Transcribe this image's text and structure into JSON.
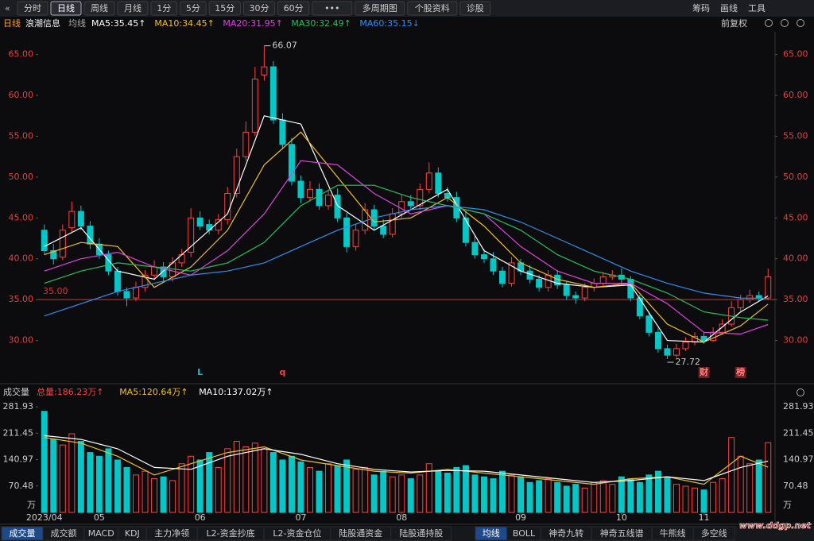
{
  "toolbar": {
    "left": [
      "分时",
      "日线",
      "周线",
      "月线",
      "1分",
      "5分",
      "15分",
      "30分",
      "60分",
      "•••",
      "多周期图",
      "个股资料",
      "诊股"
    ],
    "active_index": 1,
    "right": [
      "筹码",
      "画线",
      "工具"
    ]
  },
  "info_bar": {
    "period": "日线",
    "name": "浪潮信息",
    "indicator": "均线",
    "ma_labels": [
      {
        "text": "MA5:35.45↑",
        "color": "#ffffff"
      },
      {
        "text": "MA10:34.45↑",
        "color": "#f0c020"
      },
      {
        "text": "MA20:31.95↑",
        "color": "#e040e0"
      },
      {
        "text": "MA30:32.49↑",
        "color": "#20c060"
      },
      {
        "text": "MA60:35.15↓",
        "color": "#2a90f0"
      }
    ],
    "right": "前复权"
  },
  "chart_data": [
    {
      "type": "candlestick",
      "up_color": "#ff4040",
      "down_color": "#00c8c8",
      "ylim": [
        25.0,
        67.3
      ],
      "yticks": [
        {
          "value": 30,
          "label": "30.00"
        },
        {
          "value": 35,
          "label": "35.00"
        },
        {
          "value": 40,
          "label": "40.00"
        },
        {
          "value": 45,
          "label": "45.00"
        },
        {
          "value": 50,
          "label": "50.00"
        },
        {
          "value": 55,
          "label": "55.00"
        },
        {
          "value": 60,
          "label": "60.00"
        },
        {
          "value": 65,
          "label": "65.00"
        }
      ],
      "open": [
        43.5,
        41.0,
        40.2,
        43.8,
        45.8,
        44.0,
        41.8,
        40.5,
        38.5,
        36.0,
        35.2,
        36.5,
        38.0,
        39.0,
        37.8,
        39.5,
        40.8,
        45.0,
        44.2,
        43.5,
        44.8,
        48.0,
        52.5,
        55.5,
        62.5,
        63.5,
        57.0,
        54.0,
        49.5,
        47.5,
        48.5,
        46.5,
        47.8,
        45.0,
        41.5,
        43.5,
        46.0,
        44.0,
        43.0,
        45.5,
        47.0,
        46.5,
        48.5,
        50.5,
        48.0,
        47.5,
        45.0,
        42.0,
        40.5,
        40.0,
        38.5,
        37.0,
        39.5,
        38.5,
        37.5,
        36.5,
        38.0,
        36.8,
        35.5,
        35.2,
        36.5,
        37.0,
        37.8,
        38.0,
        37.5,
        35.2,
        33.0,
        31.0,
        29.0,
        28.2,
        29.0,
        29.8,
        30.5,
        30.0,
        31.0,
        32.0,
        34.0,
        35.0,
        35.5,
        35.2
      ],
      "high": [
        44.2,
        41.8,
        44.2,
        47.0,
        46.5,
        44.6,
        42.5,
        41.0,
        39.0,
        36.5,
        37.2,
        38.6,
        39.8,
        39.6,
        40.2,
        41.2,
        46.2,
        45.8,
        44.8,
        45.5,
        48.8,
        53.5,
        56.8,
        63.5,
        66.07,
        64.2,
        57.8,
        54.8,
        50.2,
        49.5,
        49.2,
        48.5,
        48.6,
        45.6,
        44.2,
        46.8,
        46.6,
        44.8,
        46.2,
        47.8,
        47.8,
        49.2,
        51.8,
        51.2,
        48.8,
        48.2,
        45.8,
        42.8,
        41.2,
        40.8,
        39.0,
        40.2,
        40.0,
        39.2,
        38.0,
        38.6,
        38.6,
        37.2,
        36.0,
        37.0,
        37.6,
        38.4,
        38.6,
        38.8,
        37.9,
        35.6,
        33.5,
        31.5,
        29.5,
        29.6,
        30.4,
        31.0,
        31.0,
        31.6,
        32.6,
        34.8,
        35.6,
        36.2,
        36.0,
        38.8
      ],
      "low": [
        40.5,
        39.3,
        39.8,
        43.2,
        43.5,
        41.2,
        40.0,
        38.0,
        35.5,
        34.2,
        34.8,
        36.0,
        37.4,
        37.2,
        37.2,
        39.0,
        40.2,
        43.5,
        43.0,
        43.0,
        44.2,
        47.5,
        52.0,
        55.0,
        61.8,
        56.5,
        53.5,
        49.0,
        46.8,
        47.0,
        46.0,
        46.0,
        44.5,
        40.8,
        41.0,
        43.0,
        43.5,
        42.5,
        42.6,
        45.0,
        46.0,
        46.0,
        48.0,
        47.5,
        47.0,
        44.5,
        41.5,
        40.0,
        39.5,
        38.0,
        36.5,
        36.6,
        38.0,
        37.0,
        36.0,
        36.0,
        36.3,
        35.0,
        34.5,
        34.8,
        36.0,
        36.6,
        37.4,
        37.0,
        34.8,
        32.6,
        30.5,
        28.5,
        27.72,
        27.9,
        28.7,
        29.4,
        29.6,
        29.8,
        30.7,
        31.7,
        33.6,
        34.6,
        34.8,
        35.0
      ],
      "close": [
        41.0,
        40.0,
        43.5,
        45.8,
        44.0,
        41.8,
        40.5,
        38.5,
        36.0,
        35.2,
        36.5,
        38.0,
        39.0,
        37.8,
        39.5,
        40.5,
        45.0,
        44.0,
        43.5,
        44.8,
        48.0,
        52.5,
        55.5,
        62.0,
        63.5,
        57.0,
        54.0,
        49.5,
        47.5,
        48.5,
        46.5,
        47.8,
        45.0,
        41.5,
        43.5,
        46.0,
        44.0,
        43.0,
        45.5,
        47.0,
        46.5,
        48.5,
        50.5,
        48.0,
        47.5,
        45.0,
        42.0,
        40.5,
        40.0,
        38.5,
        37.0,
        39.5,
        38.5,
        37.5,
        36.5,
        38.0,
        36.8,
        35.5,
        35.2,
        36.5,
        37.0,
        37.8,
        38.0,
        37.5,
        35.2,
        33.0,
        31.0,
        29.0,
        28.2,
        29.0,
        29.8,
        30.5,
        30.0,
        31.0,
        32.0,
        34.0,
        35.0,
        35.5,
        35.2,
        37.8
      ],
      "line_x": [
        0,
        4,
        8,
        12,
        16,
        20,
        24,
        28,
        32,
        36,
        40,
        44,
        48,
        52,
        56,
        60,
        64,
        68,
        72,
        76,
        79
      ],
      "series": [
        {
          "color": "#ffffff",
          "values": [
            41.5,
            43.8,
            38.5,
            37.5,
            41.5,
            45.5,
            57.5,
            56.5,
            46.5,
            43.5,
            46.0,
            48.5,
            41.0,
            38.5,
            37.0,
            36.5,
            36.8,
            30.0,
            29.8,
            33.5,
            35.45
          ]
        },
        {
          "color": "#f0c020",
          "values": [
            40.5,
            42.0,
            41.5,
            36.5,
            39.0,
            43.5,
            51.5,
            55.5,
            50.0,
            44.5,
            45.0,
            47.5,
            44.0,
            39.5,
            37.5,
            36.5,
            37.0,
            32.0,
            29.8,
            31.8,
            34.45
          ]
        },
        {
          "color": "#e040e0",
          "values": [
            38.5,
            40.0,
            40.8,
            39.0,
            38.0,
            41.0,
            45.5,
            52.0,
            51.5,
            48.0,
            45.5,
            46.5,
            45.5,
            41.5,
            38.5,
            37.0,
            37.0,
            34.5,
            31.0,
            30.8,
            31.95
          ]
        },
        {
          "color": "#20c060",
          "values": [
            37.0,
            38.5,
            39.5,
            39.0,
            38.5,
            39.5,
            42.0,
            46.5,
            49.0,
            49.0,
            47.5,
            46.5,
            45.5,
            43.5,
            40.5,
            38.5,
            37.5,
            35.8,
            33.5,
            32.8,
            32.49
          ]
        },
        {
          "color": "#2a90f0",
          "values": [
            33.0,
            34.5,
            36.0,
            37.0,
            38.0,
            38.5,
            39.5,
            41.5,
            43.5,
            45.0,
            46.0,
            46.5,
            46.0,
            44.5,
            42.5,
            40.5,
            38.5,
            37.0,
            35.8,
            35.2,
            35.15
          ]
        }
      ],
      "hline": {
        "value": 35,
        "label": "35.00",
        "color": "#e03030"
      },
      "high_marker": {
        "index": 24,
        "value": 66.07
      },
      "low_marker": {
        "index": 68,
        "value": 27.72
      },
      "events": [
        {
          "label": "L",
          "index": 17,
          "color": "#00c8c8"
        },
        {
          "label": "q",
          "index": 26,
          "color": "#ff4040"
        },
        {
          "label": "财",
          "index": 72,
          "color": "#ff8080",
          "box": true
        },
        {
          "label": "榜",
          "index": 76,
          "color": "#ff8080",
          "box": true
        }
      ]
    },
    {
      "type": "volume",
      "title": "成交量",
      "items": [
        {
          "text": "总量:186.23万↑",
          "color": "#ff4040"
        },
        {
          "text": "MA5:120.64万↑",
          "color": "#f0c020"
        },
        {
          "text": "MA10:137.02万↑",
          "color": "#ffffff"
        }
      ],
      "ylim": [
        0,
        297
      ],
      "yticks": [
        70.48,
        140.97,
        211.45,
        281.93
      ],
      "y_unit": "万",
      "values": [
        270,
        195,
        180,
        210,
        190,
        160,
        150,
        170,
        140,
        120,
        100,
        110,
        90,
        95,
        85,
        130,
        150,
        140,
        160,
        120,
        170,
        190,
        175,
        185,
        170,
        160,
        140,
        150,
        135,
        120,
        110,
        130,
        125,
        140,
        115,
        120,
        100,
        110,
        95,
        100,
        90,
        100,
        130,
        110,
        105,
        120,
        125,
        100,
        95,
        90,
        110,
        100,
        95,
        80,
        85,
        90,
        80,
        70,
        75,
        65,
        80,
        85,
        75,
        95,
        90,
        80,
        100,
        110,
        95,
        75,
        70,
        65,
        60,
        80,
        90,
        200,
        150,
        130,
        140,
        186.23
      ],
      "xticks": [
        {
          "value": 0,
          "label": "2023/04"
        },
        {
          "value": 6,
          "label": "05"
        },
        {
          "value": 17,
          "label": "06"
        },
        {
          "value": 28,
          "label": "07"
        },
        {
          "value": 39,
          "label": "08"
        },
        {
          "value": 52,
          "label": "09"
        },
        {
          "value": 63,
          "label": "10"
        },
        {
          "value": 72,
          "label": "11"
        }
      ],
      "line_x": [
        0,
        4,
        8,
        12,
        16,
        20,
        24,
        28,
        32,
        36,
        40,
        44,
        48,
        52,
        56,
        60,
        64,
        68,
        72,
        76,
        79
      ],
      "series": [
        {
          "color": "#f0c020",
          "values": [
            200,
            185,
            150,
            100,
            130,
            160,
            175,
            140,
            125,
            110,
            105,
            115,
            105,
            95,
            85,
            75,
            90,
            95,
            75,
            150,
            120.64
          ]
        },
        {
          "color": "#ffffff",
          "values": [
            205,
            195,
            170,
            120,
            115,
            150,
            170,
            155,
            130,
            115,
            108,
            112,
            110,
            100,
            90,
            80,
            85,
            95,
            85,
            120,
            137.02
          ]
        }
      ]
    }
  ],
  "tabs": {
    "items": [
      "成交量",
      "成交额",
      "MACD",
      "KDJ",
      "主力净领",
      "L2-资金抄底",
      "L2-资金仓位",
      "陆股通资金",
      "陆股通持股",
      "均线",
      "BOLL",
      "神奇九转",
      "神奇五线谱",
      "牛熊线",
      "多空线"
    ],
    "active": [
      0,
      9
    ]
  },
  "watermark": "www.ddgp.net"
}
